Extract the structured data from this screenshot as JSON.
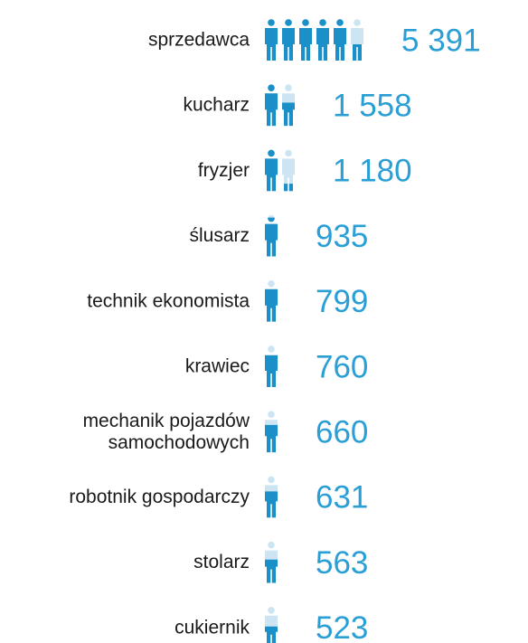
{
  "chart_data": {
    "type": "pictograph",
    "categories": [
      "sprzedawca",
      "kucharz",
      "fryzjer",
      "ślusarz",
      "technik ekonomista",
      "krawiec",
      "mechanik pojazdów samochodowych",
      "robotnik gospodarczy",
      "stolarz",
      "cukiernik"
    ],
    "values": [
      5391,
      1558,
      1180,
      935,
      799,
      760,
      660,
      631,
      563,
      523
    ],
    "value_labels": [
      "5 391",
      "1 558",
      "1 180",
      "935",
      "799",
      "760",
      "660",
      "631",
      "563",
      "523"
    ],
    "color": "#1b8fc8"
  }
}
